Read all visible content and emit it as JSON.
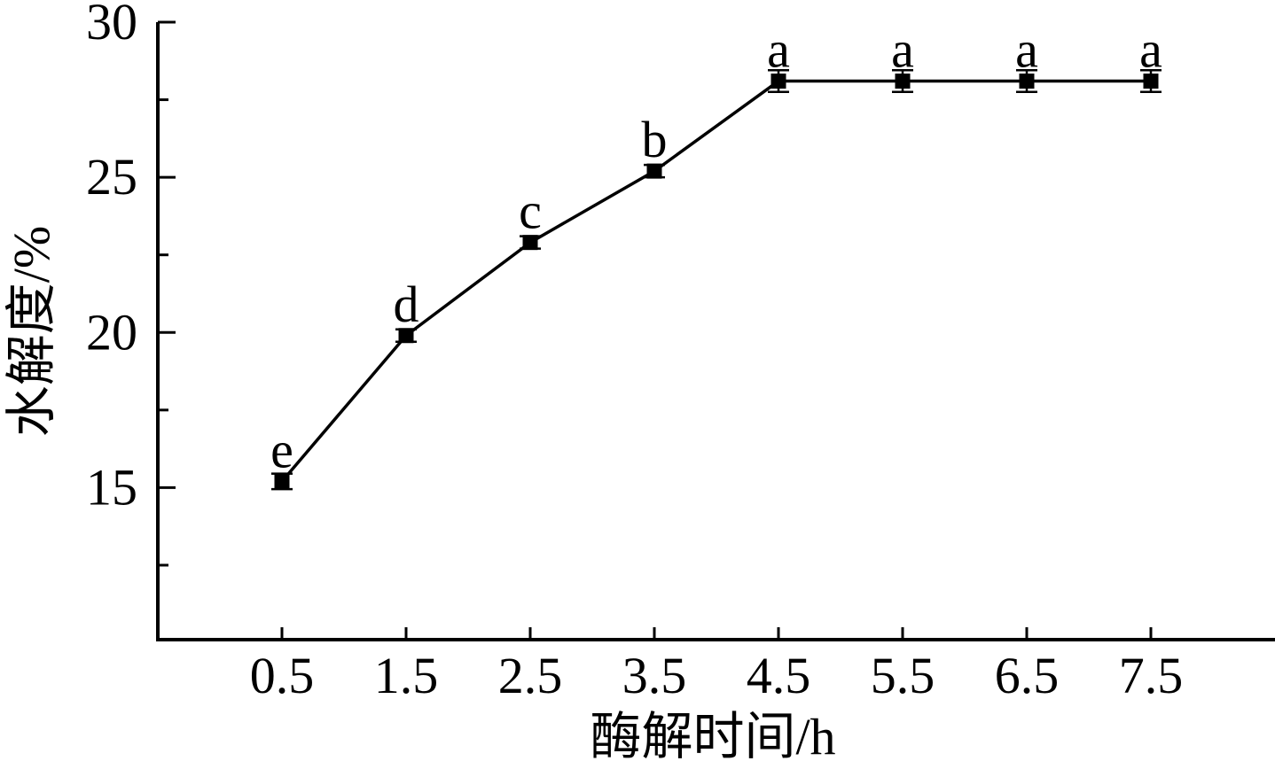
{
  "chart_data": {
    "type": "line",
    "title": "",
    "xlabel": "酶解时间/h",
    "ylabel": "水解度/%",
    "x": [
      0.5,
      1.5,
      2.5,
      3.5,
      4.5,
      5.5,
      6.5,
      7.5
    ],
    "x_tick_labels": [
      "0.5",
      "1.5",
      "2.5",
      "3.5",
      "4.5",
      "5.5",
      "6.5",
      "7.5"
    ],
    "series": [
      {
        "name": "水解度",
        "values": [
          15.2,
          19.9,
          22.9,
          25.2,
          28.1,
          28.1,
          28.1,
          28.1
        ],
        "errors": [
          0.25,
          0.2,
          0.2,
          0.2,
          0.35,
          0.35,
          0.35,
          0.35
        ],
        "point_labels": [
          "e",
          "d",
          "c",
          "b",
          "a",
          "a",
          "a",
          "a"
        ],
        "marker": "filled-square",
        "color": "#000000"
      }
    ],
    "y_major_ticks": [
      15,
      20,
      25,
      30
    ],
    "y_minor_ticks": [
      12.5,
      17.5,
      22.5,
      27.5
    ],
    "xlim": [
      -0.5,
      8.5
    ],
    "ylim": [
      10.1,
      30
    ],
    "grid": false,
    "legend": "none",
    "tick_direction": "in",
    "axis_color": "#000000",
    "background": "#ffffff"
  }
}
